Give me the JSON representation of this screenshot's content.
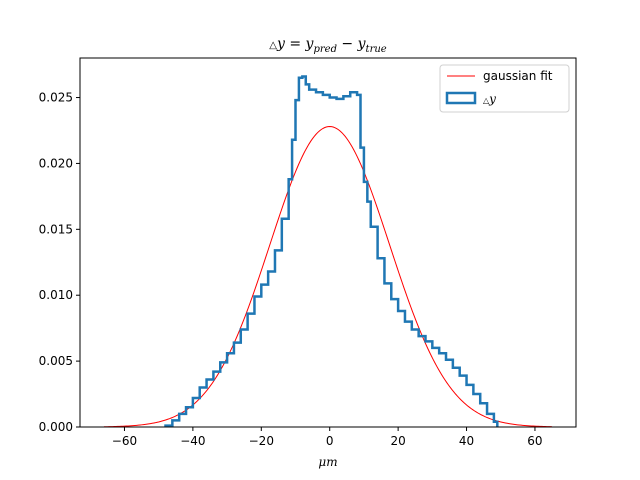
{
  "chart_data": {
    "type": "line",
    "title": "△y = y_pred − y_true",
    "title_parts": {
      "delta": "△",
      "y": "y",
      "eq": " = ",
      "y2": "y",
      "pred": "pred",
      "minus": " − ",
      "y3": "y",
      "true": "true"
    },
    "xlabel": "μm",
    "xlabel_parts": {
      "mu": "μ",
      "m": "m"
    },
    "ylabel": "",
    "xlim": [
      -73,
      72
    ],
    "ylim": [
      0,
      0.028
    ],
    "x_ticks": [
      -60,
      -40,
      -20,
      0,
      20,
      40,
      60
    ],
    "x_tick_labels": [
      "−60",
      "−40",
      "−20",
      "0",
      "20",
      "40",
      "60"
    ],
    "y_ticks": [
      0,
      0.005,
      0.01,
      0.015,
      0.02,
      0.025
    ],
    "y_tick_labels": [
      "0.000",
      "0.005",
      "0.010",
      "0.015",
      "0.020",
      "0.025"
    ],
    "grid": false,
    "legend_position": "top-right",
    "series": [
      {
        "name": "gaussian fit",
        "kind": "line",
        "color": "#ff0000",
        "gaussian": {
          "mean": 0.0,
          "sigma": 17.5,
          "amplitude": 0.0228,
          "x_range": [
            -66,
            65
          ]
        }
      },
      {
        "name": "△y",
        "name_parts": {
          "delta": "△",
          "y": "y"
        },
        "kind": "step",
        "color": "#1f77b4",
        "x": [
          -48,
          -46,
          -44,
          -42,
          -40,
          -38,
          -36,
          -34,
          -32,
          -30,
          -28,
          -26,
          -24,
          -22,
          -20,
          -18,
          -16,
          -14,
          -12,
          -11,
          -10,
          -9,
          -8,
          -7,
          -6,
          -4,
          -2,
          0,
          2,
          4,
          6,
          8,
          9,
          10,
          11,
          12,
          14,
          16,
          18,
          20,
          22,
          24,
          26,
          28,
          30,
          32,
          34,
          36,
          38,
          40,
          42,
          44,
          46,
          48,
          49
        ],
        "values": [
          0.0001,
          0.0005,
          0.001,
          0.0015,
          0.0022,
          0.003,
          0.0036,
          0.0042,
          0.0049,
          0.0056,
          0.0064,
          0.0074,
          0.0086,
          0.0099,
          0.0108,
          0.0118,
          0.0134,
          0.0158,
          0.0188,
          0.0218,
          0.0248,
          0.0265,
          0.0266,
          0.026,
          0.0256,
          0.0254,
          0.0252,
          0.025,
          0.0249,
          0.0251,
          0.0254,
          0.0252,
          0.0212,
          0.0186,
          0.0171,
          0.0152,
          0.0128,
          0.0109,
          0.0097,
          0.0088,
          0.008,
          0.0074,
          0.0069,
          0.0065,
          0.006,
          0.0056,
          0.0051,
          0.0045,
          0.0039,
          0.0032,
          0.0025,
          0.0018,
          0.001,
          0.0004,
          0.0
        ]
      }
    ]
  }
}
